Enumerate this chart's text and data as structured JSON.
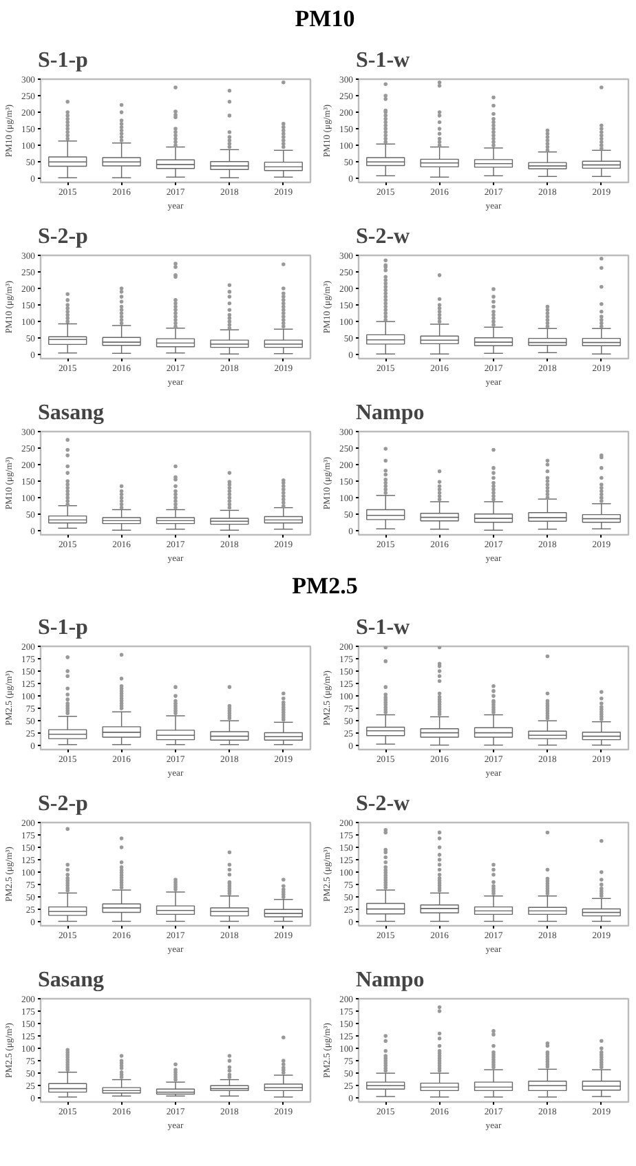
{
  "chart_data": [
    {
      "type": "box",
      "annotations": [
        "PM10"
      ],
      "title": "S-1-p",
      "xlabel": "year",
      "ylabel": "PM10 (μg/m³)",
      "categories": [
        "2015",
        "2016",
        "2017",
        "2018",
        "2019"
      ],
      "ylim": [
        -12,
        300
      ],
      "yticks": [
        0,
        50,
        100,
        150,
        200,
        250,
        300
      ],
      "color": "#666666",
      "boxes": [
        {
          "low": 2,
          "q1": 37,
          "median": 50,
          "q3": 65,
          "high": 113,
          "outliers": [
            120,
            130,
            140,
            150,
            160,
            170,
            180,
            190,
            200,
            232
          ]
        },
        {
          "low": 2,
          "q1": 38,
          "median": 50,
          "q3": 63,
          "high": 107,
          "outliers": [
            115,
            125,
            135,
            145,
            155,
            165,
            175,
            200,
            222
          ]
        },
        {
          "low": 4,
          "q1": 30,
          "median": 42,
          "q3": 56,
          "high": 95,
          "outliers": [
            100,
            110,
            120,
            130,
            140,
            150,
            185,
            192,
            202,
            275
          ]
        },
        {
          "low": 2,
          "q1": 27,
          "median": 38,
          "q3": 51,
          "high": 87,
          "outliers": [
            95,
            105,
            115,
            125,
            140,
            190,
            232,
            265
          ]
        },
        {
          "low": 4,
          "q1": 24,
          "median": 35,
          "q3": 49,
          "high": 85,
          "outliers": [
            95,
            105,
            115,
            125,
            135,
            145,
            155,
            165,
            290
          ]
        }
      ]
    },
    {
      "type": "box",
      "title": "S-1-w",
      "xlabel": "year",
      "ylabel": "PM10 (μg/m³)",
      "categories": [
        "2015",
        "2016",
        "2017",
        "2018",
        "2019"
      ],
      "ylim": [
        -12,
        300
      ],
      "yticks": [
        0,
        50,
        100,
        150,
        200,
        250,
        300
      ],
      "color": "#666666",
      "boxes": [
        {
          "low": 8,
          "q1": 39,
          "median": 50,
          "q3": 63,
          "high": 104,
          "outliers": [
            110,
            120,
            130,
            140,
            150,
            160,
            170,
            180,
            190,
            200,
            205,
            240,
            250,
            285
          ]
        },
        {
          "low": 4,
          "q1": 35,
          "median": 47,
          "q3": 58,
          "high": 95,
          "outliers": [
            100,
            110,
            120,
            135,
            150,
            170,
            190,
            200,
            280,
            290
          ]
        },
        {
          "low": 8,
          "q1": 34,
          "median": 45,
          "q3": 57,
          "high": 92,
          "outliers": [
            100,
            110,
            120,
            130,
            140,
            150,
            160,
            170,
            180,
            195,
            220,
            245
          ]
        },
        {
          "low": 6,
          "q1": 29,
          "median": 38,
          "q3": 48,
          "high": 80,
          "outliers": [
            85,
            95,
            105,
            115,
            125,
            135,
            145
          ]
        },
        {
          "low": 6,
          "q1": 31,
          "median": 41,
          "q3": 52,
          "high": 85,
          "outliers": [
            90,
            100,
            110,
            120,
            130,
            140,
            150,
            160,
            275
          ]
        }
      ]
    },
    {
      "type": "box",
      "title": "S-2-p",
      "xlabel": "year",
      "ylabel": "PM10 (μg/m³)",
      "categories": [
        "2015",
        "2016",
        "2017",
        "2018",
        "2019"
      ],
      "ylim": [
        -12,
        300
      ],
      "yticks": [
        0,
        50,
        100,
        150,
        200,
        250,
        300
      ],
      "color": "#666666",
      "boxes": [
        {
          "low": 5,
          "q1": 31,
          "median": 46,
          "q3": 54,
          "high": 93,
          "outliers": [
            100,
            110,
            120,
            130,
            140,
            150,
            165,
            183
          ]
        },
        {
          "low": 4,
          "q1": 28,
          "median": 38,
          "q3": 52,
          "high": 88,
          "outliers": [
            95,
            105,
            115,
            125,
            135,
            145,
            160,
            175,
            190,
            200
          ]
        },
        {
          "low": 5,
          "q1": 24,
          "median": 35,
          "q3": 48,
          "high": 80,
          "outliers": [
            85,
            95,
            105,
            115,
            125,
            135,
            145,
            155,
            165,
            235,
            240,
            265,
            275
          ]
        },
        {
          "low": 2,
          "q1": 22,
          "median": 32,
          "q3": 44,
          "high": 75,
          "outliers": [
            80,
            90,
            100,
            110,
            120,
            135,
            155,
            175,
            190,
            210
          ]
        },
        {
          "low": 3,
          "q1": 22,
          "median": 32,
          "q3": 44,
          "high": 77,
          "outliers": [
            85,
            95,
            105,
            115,
            125,
            135,
            145,
            155,
            165,
            175,
            185,
            200,
            273
          ]
        }
      ]
    },
    {
      "type": "box",
      "title": "S-2-w",
      "xlabel": "year",
      "ylabel": "PM10 (μg/m³)",
      "categories": [
        "2015",
        "2016",
        "2017",
        "2018",
        "2019"
      ],
      "ylim": [
        -12,
        300
      ],
      "yticks": [
        0,
        50,
        100,
        150,
        200,
        250,
        300
      ],
      "color": "#666666",
      "boxes": [
        {
          "low": 2,
          "q1": 32,
          "median": 45,
          "q3": 60,
          "high": 100,
          "outliers": [
            105,
            115,
            125,
            135,
            145,
            155,
            165,
            175,
            185,
            195,
            205,
            215,
            225,
            235,
            255,
            265,
            270,
            285
          ]
        },
        {
          "low": 2,
          "q1": 33,
          "median": 44,
          "q3": 56,
          "high": 92,
          "outliers": [
            100,
            110,
            120,
            130,
            140,
            150,
            168,
            240
          ]
        },
        {
          "low": 4,
          "q1": 27,
          "median": 38,
          "q3": 51,
          "high": 83,
          "outliers": [
            90,
            100,
            110,
            120,
            130,
            145,
            160,
            175,
            198
          ]
        },
        {
          "low": 6,
          "q1": 28,
          "median": 37,
          "q3": 49,
          "high": 79,
          "outliers": [
            85,
            95,
            105,
            115,
            125,
            135,
            145
          ]
        },
        {
          "low": 2,
          "q1": 27,
          "median": 37,
          "q3": 49,
          "high": 79,
          "outliers": [
            85,
            95,
            105,
            115,
            130,
            153,
            205,
            262,
            290
          ]
        }
      ]
    },
    {
      "type": "box",
      "title": "Sasang",
      "xlabel": "year",
      "ylabel": "PM10 (μg/m³)",
      "categories": [
        "2015",
        "2016",
        "2017",
        "2018",
        "2019"
      ],
      "ylim": [
        -12,
        300
      ],
      "yticks": [
        0,
        50,
        100,
        150,
        200,
        250,
        300
      ],
      "color": "#666666",
      "boxes": [
        {
          "low": 8,
          "q1": 24,
          "median": 33,
          "q3": 45,
          "high": 76,
          "outliers": [
            80,
            90,
            100,
            110,
            120,
            130,
            140,
            150,
            175,
            195,
            228,
            245,
            275
          ]
        },
        {
          "low": 2,
          "q1": 22,
          "median": 31,
          "q3": 40,
          "high": 64,
          "outliers": [
            70,
            80,
            90,
            100,
            110,
            120,
            135
          ]
        },
        {
          "low": 5,
          "q1": 22,
          "median": 31,
          "q3": 40,
          "high": 64,
          "outliers": [
            70,
            80,
            90,
            100,
            110,
            120,
            135,
            155,
            162,
            195
          ]
        },
        {
          "low": 2,
          "q1": 20,
          "median": 29,
          "q3": 38,
          "high": 62,
          "outliers": [
            70,
            80,
            90,
            100,
            110,
            120,
            130,
            140,
            148,
            175
          ]
        },
        {
          "low": 5,
          "q1": 24,
          "median": 33,
          "q3": 43,
          "high": 70,
          "outliers": [
            75,
            85,
            95,
            105,
            115,
            125,
            135,
            145,
            153
          ]
        }
      ]
    },
    {
      "type": "box",
      "title": "Nampo",
      "xlabel": "year",
      "ylabel": "PM10 (μg/m³)",
      "categories": [
        "2015",
        "2016",
        "2017",
        "2018",
        "2019"
      ],
      "ylim": [
        -12,
        300
      ],
      "yticks": [
        0,
        50,
        100,
        150,
        200,
        250,
        300
      ],
      "color": "#666666",
      "boxes": [
        {
          "low": 6,
          "q1": 34,
          "median": 47,
          "q3": 64,
          "high": 107,
          "outliers": [
            115,
            125,
            135,
            145,
            155,
            170,
            182,
            212,
            248
          ]
        },
        {
          "low": 5,
          "q1": 30,
          "median": 41,
          "q3": 53,
          "high": 88,
          "outliers": [
            95,
            105,
            115,
            125,
            135,
            148,
            180
          ]
        },
        {
          "low": 2,
          "q1": 26,
          "median": 38,
          "q3": 51,
          "high": 88,
          "outliers": [
            95,
            105,
            115,
            125,
            135,
            145,
            160,
            175,
            190,
            245
          ]
        },
        {
          "low": 5,
          "q1": 29,
          "median": 40,
          "q3": 55,
          "high": 96,
          "outliers": [
            100,
            110,
            120,
            130,
            140,
            150,
            160,
            180,
            200,
            212
          ]
        },
        {
          "low": 6,
          "q1": 26,
          "median": 37,
          "q3": 49,
          "high": 82,
          "outliers": [
            90,
            100,
            110,
            120,
            130,
            140,
            160,
            190,
            222,
            228
          ]
        }
      ]
    },
    {
      "type": "box",
      "annotations": [
        "PM2.5"
      ],
      "title": "S-1-p",
      "xlabel": "year",
      "ylabel": "PM2.5 (μg/m³)",
      "categories": [
        "2015",
        "2016",
        "2017",
        "2018",
        "2019"
      ],
      "ylim": [
        -8,
        200
      ],
      "yticks": [
        0,
        25,
        50,
        75,
        100,
        125,
        150,
        175,
        200
      ],
      "color": "#666666",
      "boxes": [
        {
          "low": 2,
          "q1": 14,
          "median": 23,
          "q3": 32,
          "high": 59,
          "outliers": [
            65,
            70,
            75,
            80,
            85,
            93,
            103,
            115,
            140,
            150,
            178
          ]
        },
        {
          "low": 2,
          "q1": 17,
          "median": 27,
          "q3": 38,
          "high": 68,
          "outliers": [
            75,
            80,
            85,
            90,
            95,
            100,
            105,
            110,
            115,
            120,
            135,
            183
          ]
        },
        {
          "low": 2,
          "q1": 12,
          "median": 21,
          "q3": 31,
          "high": 60,
          "outliers": [
            65,
            70,
            75,
            80,
            85,
            90,
            100,
            118
          ]
        },
        {
          "low": 2,
          "q1": 11,
          "median": 19,
          "q3": 28,
          "high": 50,
          "outliers": [
            55,
            60,
            65,
            70,
            75,
            80,
            118
          ]
        },
        {
          "low": 2,
          "q1": 11,
          "median": 18,
          "q3": 26,
          "high": 47,
          "outliers": [
            52,
            57,
            62,
            67,
            72,
            77,
            82,
            87,
            95,
            105
          ]
        }
      ]
    },
    {
      "type": "box",
      "title": "S-1-w",
      "xlabel": "year",
      "ylabel": "PM2.5 (μg/m³)",
      "categories": [
        "2015",
        "2016",
        "2017",
        "2018",
        "2019"
      ],
      "ylim": [
        -8,
        200
      ],
      "yticks": [
        0,
        25,
        50,
        75,
        100,
        125,
        150,
        175,
        200
      ],
      "color": "#666666",
      "boxes": [
        {
          "low": 3,
          "q1": 20,
          "median": 30,
          "q3": 37,
          "high": 62,
          "outliers": [
            67,
            72,
            77,
            82,
            87,
            92,
            97,
            103,
            118,
            170,
            198
          ]
        },
        {
          "low": 1,
          "q1": 17,
          "median": 26,
          "q3": 34,
          "high": 58,
          "outliers": [
            63,
            68,
            73,
            78,
            83,
            88,
            93,
            98,
            105,
            130,
            140,
            150,
            160,
            165,
            198
          ]
        },
        {
          "low": 1,
          "q1": 17,
          "median": 26,
          "q3": 36,
          "high": 62,
          "outliers": [
            67,
            72,
            77,
            82,
            87,
            90,
            100,
            110,
            120
          ]
        },
        {
          "low": 1,
          "q1": 14,
          "median": 21,
          "q3": 29,
          "high": 50,
          "outliers": [
            55,
            60,
            65,
            70,
            75,
            80,
            85,
            90,
            105,
            180
          ]
        },
        {
          "low": 1,
          "q1": 12,
          "median": 19,
          "q3": 27,
          "high": 48,
          "outliers": [
            53,
            58,
            63,
            68,
            73,
            78,
            85,
            95,
            108
          ]
        }
      ]
    },
    {
      "type": "box",
      "title": "S-2-p",
      "xlabel": "year",
      "ylabel": "PM2.5 (μg/m³)",
      "categories": [
        "2015",
        "2016",
        "2017",
        "2018",
        "2019"
      ],
      "ylim": [
        -8,
        200
      ],
      "yticks": [
        0,
        25,
        50,
        75,
        100,
        125,
        150,
        175,
        200
      ],
      "color": "#666666",
      "boxes": [
        {
          "low": 1,
          "q1": 13,
          "median": 21,
          "q3": 30,
          "high": 58,
          "outliers": [
            63,
            68,
            73,
            78,
            83,
            88,
            95,
            105,
            115,
            187
          ]
        },
        {
          "low": 1,
          "q1": 19,
          "median": 28,
          "q3": 36,
          "high": 64,
          "outliers": [
            69,
            74,
            79,
            84,
            89,
            94,
            99,
            104,
            110,
            120,
            150,
            168
          ]
        },
        {
          "low": 1,
          "q1": 15,
          "median": 23,
          "q3": 32,
          "high": 60,
          "outliers": [
            65,
            70,
            75,
            80,
            85
          ]
        },
        {
          "low": 1,
          "q1": 12,
          "median": 21,
          "q3": 28,
          "high": 52,
          "outliers": [
            57,
            62,
            67,
            72,
            77,
            80,
            95,
            105,
            115,
            140
          ]
        },
        {
          "low": 1,
          "q1": 10,
          "median": 17,
          "q3": 25,
          "high": 45,
          "outliers": [
            50,
            55,
            60,
            65,
            72,
            85
          ]
        }
      ]
    },
    {
      "type": "box",
      "title": "S-2-w",
      "xlabel": "year",
      "ylabel": "PM2.5 (μg/m³)",
      "categories": [
        "2015",
        "2016",
        "2017",
        "2018",
        "2019"
      ],
      "ylim": [
        -8,
        200
      ],
      "yticks": [
        0,
        25,
        50,
        75,
        100,
        125,
        150,
        175,
        200
      ],
      "color": "#666666",
      "boxes": [
        {
          "low": 1,
          "q1": 16,
          "median": 26,
          "q3": 37,
          "high": 64,
          "outliers": [
            69,
            74,
            79,
            84,
            89,
            94,
            99,
            104,
            110,
            120,
            130,
            140,
            145,
            180,
            185
          ]
        },
        {
          "low": 1,
          "q1": 18,
          "median": 27,
          "q3": 34,
          "high": 58,
          "outliers": [
            63,
            68,
            73,
            78,
            83,
            88,
            95,
            105,
            115,
            125,
            135,
            150,
            168,
            180
          ]
        },
        {
          "low": 1,
          "q1": 15,
          "median": 22,
          "q3": 30,
          "high": 52,
          "outliers": [
            57,
            62,
            67,
            72,
            80,
            95,
            105,
            115
          ]
        },
        {
          "low": 1,
          "q1": 15,
          "median": 22,
          "q3": 29,
          "high": 52,
          "outliers": [
            57,
            62,
            67,
            72,
            77,
            82,
            87,
            105,
            180
          ]
        },
        {
          "low": 1,
          "q1": 12,
          "median": 19,
          "q3": 26,
          "high": 47,
          "outliers": [
            52,
            57,
            62,
            67,
            75,
            85,
            100,
            163
          ]
        }
      ]
    },
    {
      "type": "box",
      "title": "Sasang",
      "xlabel": "year",
      "ylabel": "PM2.5 (μg/m³)",
      "categories": [
        "2015",
        "2016",
        "2017",
        "2018",
        "2019"
      ],
      "ylim": [
        -8,
        200
      ],
      "yticks": [
        0,
        25,
        50,
        75,
        100,
        125,
        150,
        175,
        200
      ],
      "color": "#666666",
      "boxes": [
        {
          "low": 2,
          "q1": 12,
          "median": 19,
          "q3": 29,
          "high": 52,
          "outliers": [
            57,
            62,
            67,
            72,
            77,
            82,
            87,
            92,
            97
          ]
        },
        {
          "low": 4,
          "q1": 10,
          "median": 15,
          "q3": 21,
          "high": 37,
          "outliers": [
            42,
            47,
            52,
            60,
            65,
            70,
            75,
            85
          ]
        },
        {
          "low": 4,
          "q1": 8,
          "median": 12,
          "q3": 18,
          "high": 32,
          "outliers": [
            37,
            42,
            47,
            52,
            57,
            68
          ]
        },
        {
          "low": 4,
          "q1": 15,
          "median": 19,
          "q3": 25,
          "high": 37,
          "outliers": [
            42,
            47,
            55,
            62,
            75,
            85
          ]
        },
        {
          "low": 2,
          "q1": 15,
          "median": 21,
          "q3": 28,
          "high": 46,
          "outliers": [
            51,
            56,
            61,
            68,
            75,
            122
          ]
        }
      ]
    },
    {
      "type": "box",
      "title": "Nampo",
      "xlabel": "year",
      "ylabel": "PM2.5 (μg/m³)",
      "categories": [
        "2015",
        "2016",
        "2017",
        "2018",
        "2019"
      ],
      "ylim": [
        -8,
        200
      ],
      "yticks": [
        0,
        25,
        50,
        75,
        100,
        125,
        150,
        175,
        200
      ],
      "color": "#666666",
      "boxes": [
        {
          "low": 3,
          "q1": 18,
          "median": 25,
          "q3": 32,
          "high": 50,
          "outliers": [
            55,
            60,
            65,
            70,
            75,
            80,
            85,
            95,
            115,
            125
          ]
        },
        {
          "low": 2,
          "q1": 15,
          "median": 22,
          "q3": 30,
          "high": 50,
          "outliers": [
            55,
            60,
            65,
            70,
            75,
            80,
            85,
            90,
            95,
            105,
            120,
            130,
            175,
            183
          ]
        },
        {
          "low": 2,
          "q1": 15,
          "median": 22,
          "q3": 32,
          "high": 57,
          "outliers": [
            62,
            67,
            72,
            77,
            82,
            87,
            92,
            105,
            128,
            135
          ]
        },
        {
          "low": 2,
          "q1": 15,
          "median": 25,
          "q3": 34,
          "high": 58,
          "outliers": [
            63,
            68,
            73,
            78,
            83,
            88,
            92,
            105,
            110
          ]
        },
        {
          "low": 3,
          "q1": 16,
          "median": 24,
          "q3": 34,
          "high": 57,
          "outliers": [
            62,
            67,
            72,
            77,
            82,
            87,
            92,
            100,
            115
          ]
        }
      ]
    }
  ]
}
